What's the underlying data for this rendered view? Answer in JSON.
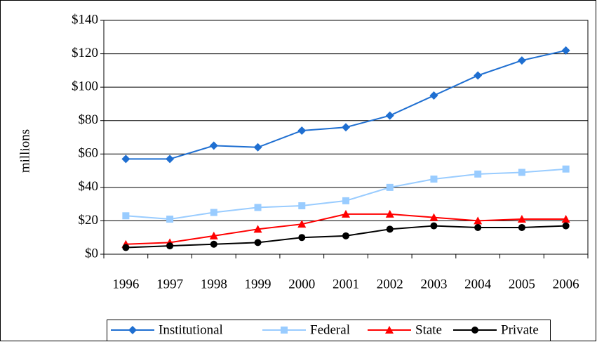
{
  "chart_data": {
    "type": "line",
    "y_label": "millions",
    "categories": [
      "1996",
      "1997",
      "1998",
      "1999",
      "2000",
      "2001",
      "2002",
      "2003",
      "2004",
      "2005",
      "2006"
    ],
    "series": [
      {
        "name": "Institutional",
        "color": "#1f6fd1",
        "marker": "diamond",
        "values": [
          57,
          57,
          65,
          64,
          74,
          76,
          83,
          95,
          107,
          116,
          122
        ]
      },
      {
        "name": "Federal",
        "color": "#99ccff",
        "marker": "square",
        "values": [
          23,
          21,
          25,
          28,
          29,
          32,
          40,
          45,
          48,
          49,
          51
        ]
      },
      {
        "name": "State",
        "color": "#ff0000",
        "marker": "triangle",
        "values": [
          6,
          7,
          11,
          15,
          18,
          24,
          24,
          22,
          20,
          21,
          21
        ]
      },
      {
        "name": "Private",
        "color": "#000000",
        "marker": "circle",
        "values": [
          4,
          5,
          6,
          7,
          10,
          11,
          15,
          17,
          16,
          16,
          17
        ]
      }
    ],
    "ylim": [
      0,
      140
    ],
    "yticks": [
      {
        "value": 0,
        "label": "$0"
      },
      {
        "value": 20,
        "label": "$20"
      },
      {
        "value": 40,
        "label": "$40"
      },
      {
        "value": 60,
        "label": "$60"
      },
      {
        "value": 80,
        "label": "$80"
      },
      {
        "value": 100,
        "label": "$100"
      },
      {
        "value": 120,
        "label": "$120"
      },
      {
        "value": 140,
        "label": "$140"
      }
    ],
    "grid": true,
    "legend": "bottom"
  }
}
